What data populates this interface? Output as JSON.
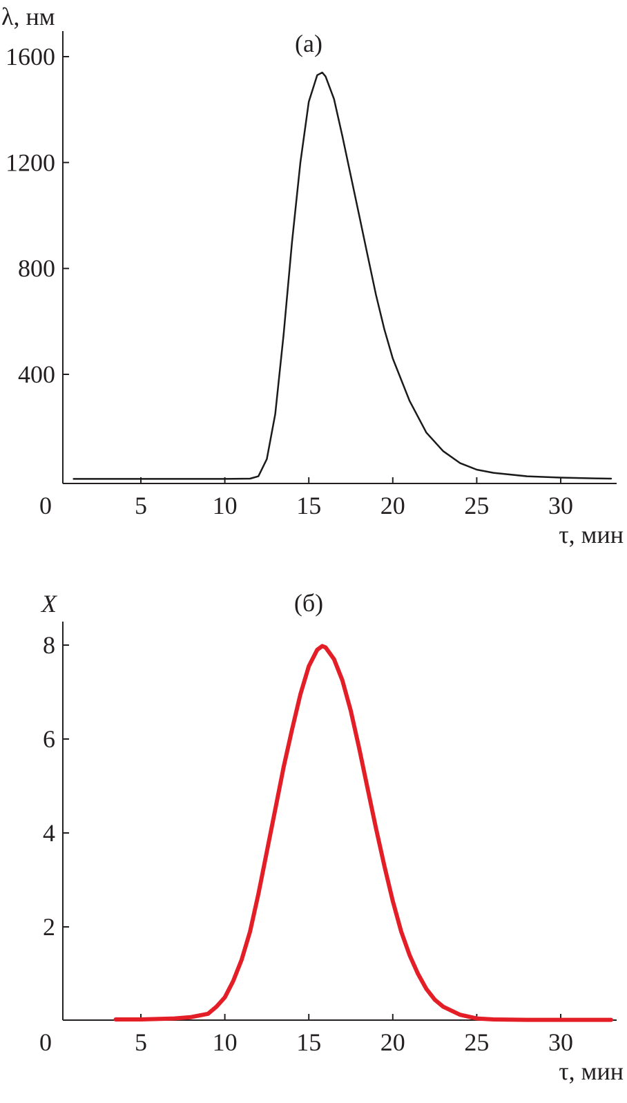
{
  "chart_data": [
    {
      "type": "line",
      "panel_label": "(a)",
      "ylabel": "λ, нм",
      "xlabel": "τ, мин",
      "x_origin_label": "0",
      "xlim": [
        0,
        33
      ],
      "ylim": [
        0,
        1700
      ],
      "xticks": [
        "5",
        "10",
        "15",
        "20",
        "25",
        "30"
      ],
      "yticks": [
        "400",
        "800",
        "1200",
        "1600"
      ],
      "series": [
        {
          "color": "#1a1a1a",
          "x": [
            1,
            5,
            10,
            11.5,
            12,
            12.5,
            13,
            13.5,
            14,
            14.5,
            15,
            15.5,
            15.8,
            16,
            16.5,
            17,
            17.5,
            18,
            18.5,
            19,
            19.5,
            20,
            21,
            22,
            23,
            24,
            25,
            26,
            28,
            30,
            32,
            33
          ],
          "y": [
            5,
            5,
            5,
            6,
            15,
            80,
            250,
            550,
            900,
            1200,
            1430,
            1530,
            1540,
            1525,
            1440,
            1300,
            1150,
            1000,
            850,
            700,
            570,
            460,
            300,
            180,
            110,
            65,
            40,
            28,
            15,
            10,
            7,
            6
          ]
        }
      ]
    },
    {
      "type": "line",
      "panel_label": "(б)",
      "ylabel": "X",
      "xlabel": "τ, мин",
      "x_origin_label": "0",
      "xlim": [
        0,
        33
      ],
      "ylim": [
        0,
        8.5
      ],
      "xticks": [
        "5",
        "10",
        "15",
        "20",
        "25",
        "30"
      ],
      "yticks": [
        "2",
        "4",
        "6",
        "8"
      ],
      "series": [
        {
          "color": "#e41e26",
          "x": [
            3.5,
            5,
            7,
            8,
            9,
            9.5,
            10,
            10.5,
            11,
            11.5,
            12,
            12.5,
            13,
            13.5,
            14,
            14.5,
            15,
            15.5,
            15.8,
            16,
            16.5,
            17,
            17.5,
            18,
            18.5,
            19,
            19.5,
            20,
            20.5,
            21,
            21.5,
            22,
            22.5,
            23,
            24,
            25,
            26,
            28,
            30,
            33
          ],
          "y": [
            0.03,
            0.03,
            0.05,
            0.08,
            0.15,
            0.3,
            0.5,
            0.85,
            1.3,
            1.9,
            2.7,
            3.6,
            4.5,
            5.4,
            6.2,
            6.95,
            7.55,
            7.9,
            7.98,
            7.95,
            7.7,
            7.25,
            6.6,
            5.8,
            4.95,
            4.1,
            3.3,
            2.55,
            1.9,
            1.4,
            1.0,
            0.68,
            0.45,
            0.3,
            0.13,
            0.05,
            0.03,
            0.02,
            0.02,
            0.02
          ]
        }
      ]
    }
  ]
}
